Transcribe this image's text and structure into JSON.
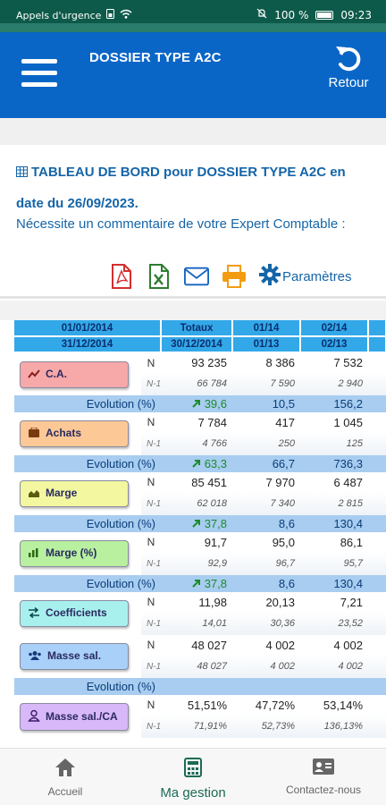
{
  "status_bar": {
    "carrier": "Appels d'urgence",
    "battery": "100 %",
    "time": "09:23"
  },
  "header": {
    "title": "DOSSIER TYPE A2C",
    "back_label": "Retour",
    "menu_icon": "hamburger-icon",
    "back_icon": "undo-arrow-icon"
  },
  "board": {
    "title": "TABLEAU DE BORD pour DOSSIER TYPE A2C en date du 26/09/2023.",
    "subtitle": "Nécessite un commentaire de votre Expert Comptable :",
    "toolbar": {
      "pdf_icon": "pdf-icon",
      "excel_icon": "excel-icon",
      "mail_icon": "mail-icon",
      "print_icon": "printer-icon",
      "params_label": "Paramètres"
    }
  },
  "table": {
    "header_row1": [
      "01/01/2014",
      "Totaux",
      "01/14",
      "02/14"
    ],
    "header_row2": [
      "31/12/2014",
      "30/12/2014",
      "01/13",
      "02/13"
    ],
    "n_label": "N",
    "n1_label": "N-1",
    "evolution_label": "Evolution (%)",
    "rows": [
      {
        "label": "C.A.",
        "icon": "line-chart-icon",
        "color": "#f7a8a8",
        "n": [
          "93 235",
          "8 386",
          "7 532"
        ],
        "n1": [
          "66 784",
          "7 590",
          "2 940"
        ],
        "evo": [
          "39,6",
          "10,5",
          "156,2"
        ],
        "evo_up": true
      },
      {
        "label": "Achats",
        "icon": "cart-icon",
        "color": "#fbc896",
        "n": [
          "7 784",
          "417",
          "1 045"
        ],
        "n1": [
          "4 766",
          "250",
          "125"
        ],
        "evo": [
          "63,3",
          "66,7",
          "736,3"
        ],
        "evo_up": true
      },
      {
        "label": "Marge",
        "icon": "area-chart-icon",
        "color": "#f2f7a0",
        "n": [
          "85 451",
          "7 970",
          "6 487"
        ],
        "n1": [
          "62 018",
          "7 340",
          "2 815"
        ],
        "evo": [
          "37,8",
          "8,6",
          "130,4"
        ],
        "evo_up": true
      },
      {
        "label": "Marge (%)",
        "icon": "bar-chart-icon",
        "color": "#b8f0a0",
        "n": [
          "91,7",
          "95,0",
          "86,1"
        ],
        "n1": [
          "92,9",
          "96,7",
          "95,7"
        ],
        "evo": [
          "37,8",
          "8,6",
          "130,4"
        ],
        "evo_up": true
      },
      {
        "label": "Coefficients",
        "icon": "exchange-icon",
        "color": "#a8f0ee",
        "n": [
          "11,98",
          "20,13",
          "7,21"
        ],
        "n1": [
          "14,01",
          "30,36",
          "23,52"
        ],
        "evo": null,
        "evo_up": false
      },
      {
        "label": "Masse sal.",
        "icon": "users-icon",
        "color": "#a8d0f8",
        "n": [
          "48 027",
          "4 002",
          "4 002"
        ],
        "n1": [
          "48 027",
          "4 002",
          "4 002"
        ],
        "evo": [
          "",
          "",
          ""
        ],
        "evo_up": false
      },
      {
        "label": "Masse sal./CA",
        "icon": "user-icon",
        "color": "#d8b8f8",
        "n": [
          "51,51%",
          "47,72%",
          "53,14%"
        ],
        "n1": [
          "71,91%",
          "52,73%",
          "136,13%"
        ],
        "evo": null,
        "evo_up": false
      }
    ]
  },
  "bottom_nav": {
    "items": [
      {
        "label": "Accueil",
        "icon": "home-icon",
        "active": false
      },
      {
        "label": "Ma gestion",
        "icon": "calculator-icon",
        "active": true
      },
      {
        "label": "Contactez-nous",
        "icon": "contact-card-icon",
        "active": false
      }
    ]
  },
  "colors": {
    "status_bar": "#0d5a4a",
    "app_bar": "#0a66c6",
    "table_header": "#33a8e8",
    "evolution_row": "#a8cdf0",
    "positive": "#1c8a2a",
    "active_nav": "#1b6b55"
  }
}
